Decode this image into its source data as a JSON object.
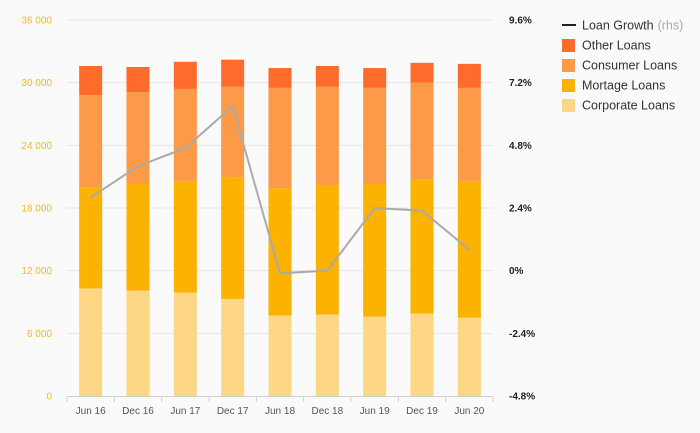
{
  "chart_data": {
    "type": "bar",
    "stacked": true,
    "categories": [
      "Jun 16",
      "Dec 16",
      "Jun 17",
      "Dec 17",
      "Jun 18",
      "Dec 18",
      "Jun 19",
      "Dec 19",
      "Jun 20"
    ],
    "series": [
      {
        "name": "Corporate Loans",
        "color": "#fdd785",
        "values": [
          10300,
          10100,
          9900,
          9300,
          7700,
          7800,
          7600,
          7900,
          7500
        ]
      },
      {
        "name": "Mortage Loans",
        "color": "#fbb200",
        "values": [
          9700,
          10200,
          10700,
          11600,
          12200,
          12400,
          12700,
          12800,
          13100
        ]
      },
      {
        "name": "Consumer Loans",
        "color": "#fd9a47",
        "values": [
          8800,
          8800,
          8800,
          8700,
          9600,
          9400,
          9200,
          9300,
          8900
        ]
      },
      {
        "name": "Other Loans",
        "color": "#ff6b2b",
        "values": [
          2800,
          2400,
          2600,
          2600,
          1900,
          2000,
          1900,
          1900,
          2300
        ]
      }
    ],
    "line_series": {
      "name": "Loan Growth",
      "name_suffix": "(rhs)",
      "color": "#aaaaaa",
      "legend_color": "#222222",
      "axis": "right",
      "values": [
        2.8,
        4.0,
        4.7,
        6.3,
        -0.1,
        0.0,
        2.4,
        2.3,
        0.8
      ]
    },
    "y_left": {
      "min": 0,
      "max": 36000,
      "ticks": [
        "0",
        "6 000",
        "12 000",
        "18 000",
        "24 000",
        "30 000",
        "36 000"
      ],
      "tick_color": "#f5b82e"
    },
    "y_right": {
      "min": -4.8,
      "max": 9.6,
      "ticks": [
        "-4.8%",
        "-2.4%",
        "0%",
        "2.4%",
        "4.8%",
        "7.2%",
        "9.6%"
      ]
    },
    "grid": true,
    "legend_position": "top-right"
  }
}
